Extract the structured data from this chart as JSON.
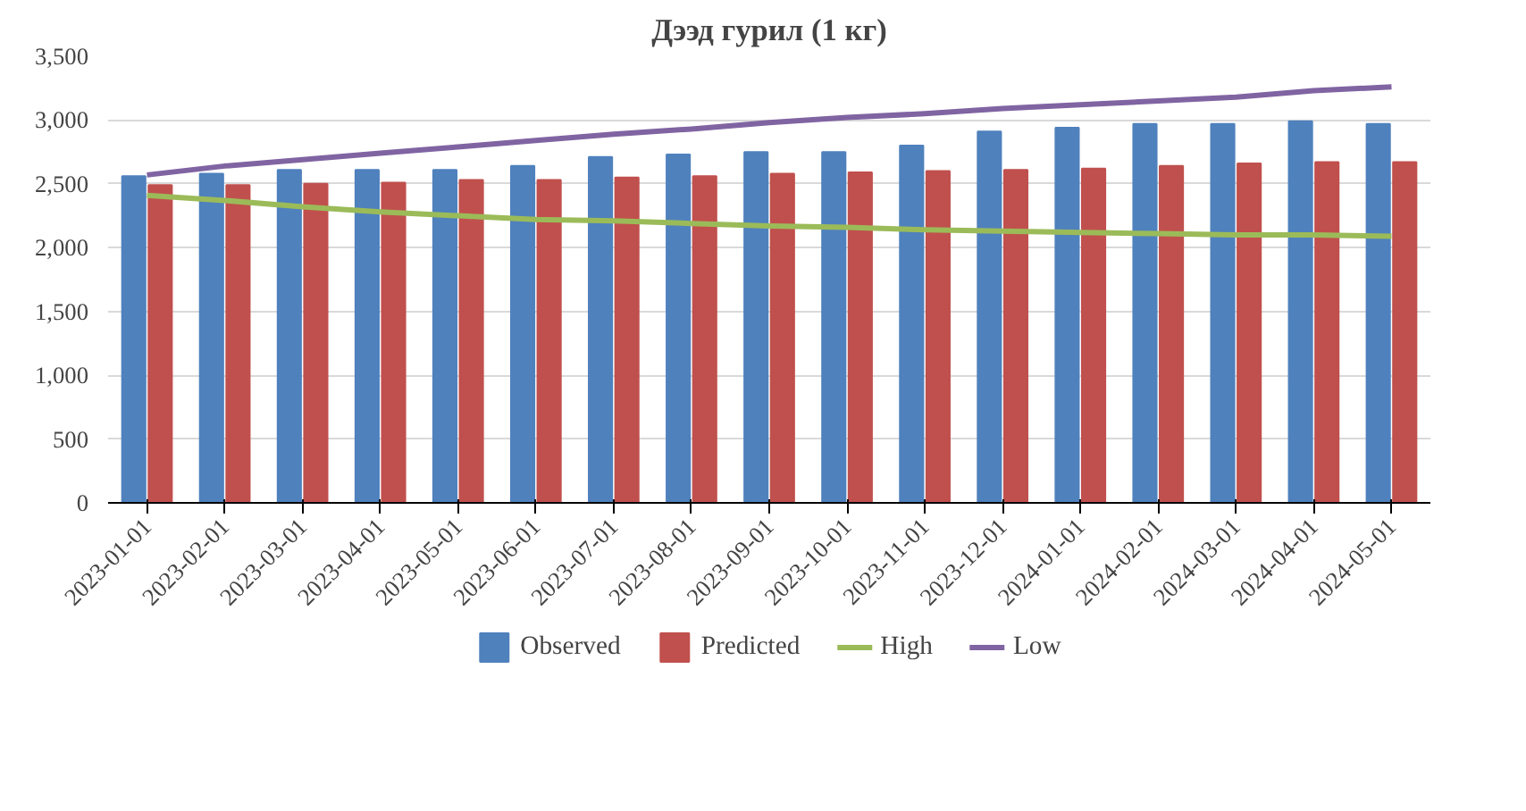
{
  "chart_data": {
    "type": "bar",
    "title": "Дээд гурил (1 кг)",
    "categories": [
      "2023-01-01",
      "2023-02-01",
      "2023-03-01",
      "2023-04-01",
      "2023-05-01",
      "2023-06-01",
      "2023-07-01",
      "2023-08-01",
      "2023-09-01",
      "2023-10-01",
      "2023-11-01",
      "2023-12-01",
      "2024-01-01",
      "2024-02-01",
      "2024-03-01",
      "2024-04-01",
      "2024-05-01"
    ],
    "series": [
      {
        "name": "Observed",
        "color": "#4f81bd",
        "values": [
          2560,
          2580,
          2610,
          2610,
          2610,
          2640,
          2710,
          2730,
          2750,
          2750,
          2800,
          2910,
          2940,
          2970,
          2970,
          2990,
          2970
        ]
      },
      {
        "name": "Predicted",
        "color": "#c0504d",
        "values": [
          2490,
          2490,
          2500,
          2510,
          2530,
          2530,
          2550,
          2560,
          2580,
          2590,
          2600,
          2610,
          2620,
          2640,
          2660,
          2670,
          2670
        ]
      },
      {
        "name": "High",
        "color": "#9bbb59",
        "type": "line",
        "values": [
          2410,
          2370,
          2320,
          2280,
          2250,
          2220,
          2210,
          2190,
          2170,
          2160,
          2140,
          2130,
          2120,
          2110,
          2100,
          2100,
          2090
        ]
      },
      {
        "name": "Low",
        "color": "#8064a2",
        "type": "line",
        "values": [
          2570,
          2640,
          2690,
          2740,
          2790,
          2840,
          2890,
          2930,
          2980,
          3020,
          3050,
          3090,
          3120,
          3150,
          3180,
          3230,
          3260
        ]
      }
    ],
    "ylim": [
      0,
      3500
    ],
    "yticks": [
      {
        "value": 0,
        "label": "0"
      },
      {
        "value": 500,
        "label": "500"
      },
      {
        "value": 1000,
        "label": "1,000"
      },
      {
        "value": 1500,
        "label": "1,500"
      },
      {
        "value": 2000,
        "label": "2,000"
      },
      {
        "value": 2500,
        "label": "2,500"
      },
      {
        "value": 3000,
        "label": "3,000"
      },
      {
        "value": 3500,
        "label": "3,500"
      }
    ],
    "grid": "y",
    "legend": "bottom"
  }
}
